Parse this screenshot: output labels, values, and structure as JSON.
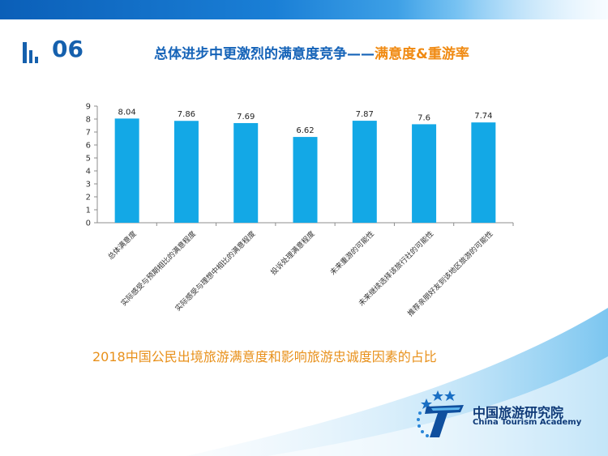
{
  "header": {
    "section_number": "06",
    "title_part1": "总体进步中更激烈的满意度竞争——",
    "title_part2": "满意度&重游率"
  },
  "caption": "2018中国公民出境旅游满意度和影响旅游忠诚度因素的占比",
  "logo": {
    "name_cn": "中国旅游研究院",
    "name_en": "China Tourism Academy",
    "icon": "star-t-logo-icon"
  },
  "colors": {
    "bar": "#13a8e6",
    "brand_blue": "#1563b8",
    "accent_orange": "#f08a12"
  },
  "chart_data": {
    "type": "bar",
    "categories": [
      "总体满意度",
      "实际感受与预期相比的满意程度",
      "实际感受与理想中相比的满意程度",
      "投诉处理满意程度",
      "未来重游的可能性",
      "未来继续选择该旅行社的可能性",
      "推荐亲朋好友到该地区旅游的可能性"
    ],
    "values": [
      8.04,
      7.86,
      7.69,
      6.62,
      7.87,
      7.6,
      7.74
    ],
    "data_labels": [
      "8.04",
      "7.86",
      "7.69",
      "6.62",
      "7.87",
      "7.6",
      "7.74"
    ],
    "y_ticks": [
      "0",
      "1",
      "2",
      "3",
      "4",
      "5",
      "6",
      "7",
      "8",
      "9"
    ],
    "ylim": [
      0,
      9
    ],
    "grid": false,
    "legend": "none"
  }
}
